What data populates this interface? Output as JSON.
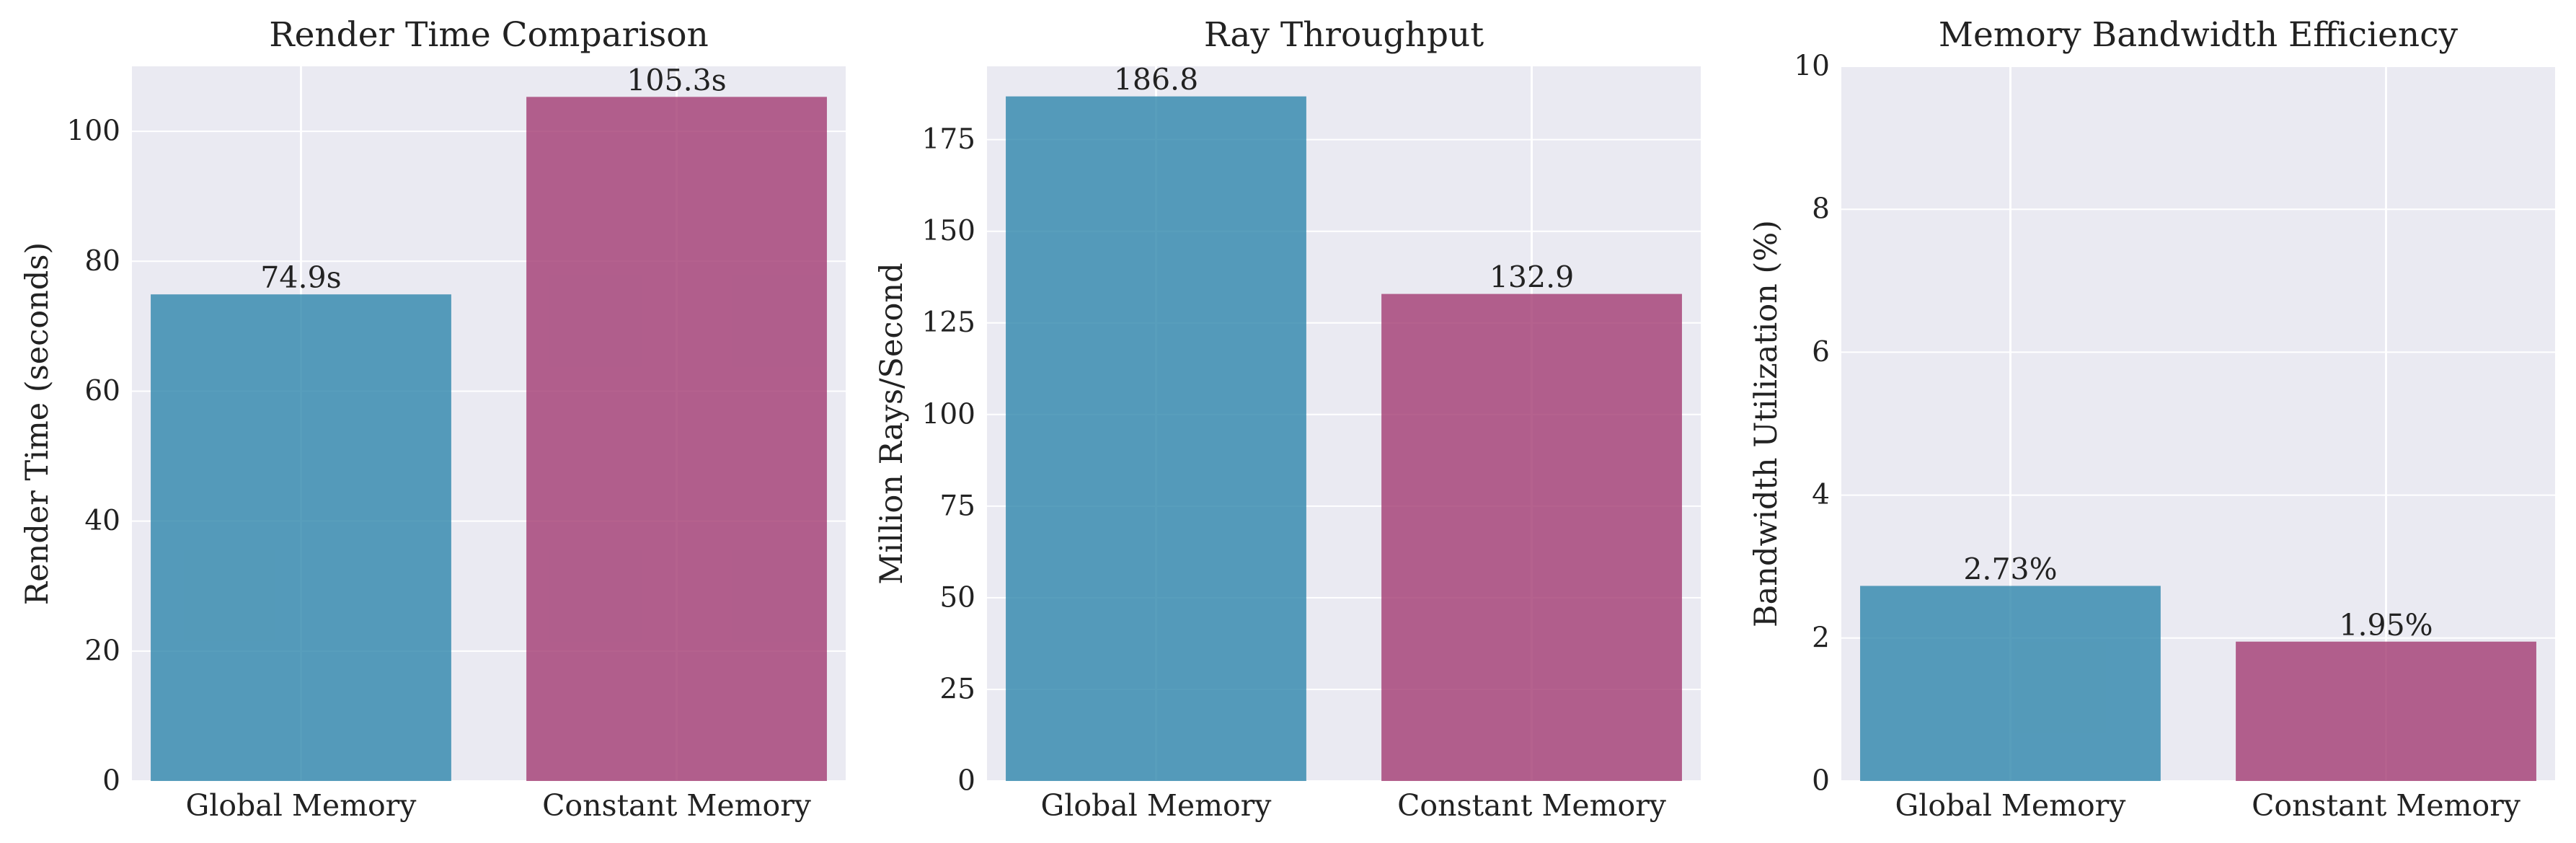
{
  "figure": {
    "background": "#ffffff",
    "panel_background": "#eaeaf2",
    "grid_color": "#ffffff"
  },
  "chart_data": [
    {
      "type": "bar",
      "title": "Render Time Comparison",
      "xlabel": "",
      "ylabel": "Render Time (seconds)",
      "categories": [
        "Global Memory",
        "Constant Memory"
      ],
      "values": [
        74.9,
        105.3
      ],
      "value_labels": [
        "74.9s",
        "105.3s"
      ],
      "colors": [
        "#2e86ab",
        "#a23b72"
      ],
      "ylim": [
        0,
        110
      ],
      "yticks": [
        0,
        20,
        40,
        60,
        80,
        100
      ],
      "ytick_labels": [
        "0",
        "20",
        "40",
        "60",
        "80",
        "100"
      ],
      "grid": true
    },
    {
      "type": "bar",
      "title": "Ray Throughput",
      "xlabel": "",
      "ylabel": "Million Rays/Second",
      "categories": [
        "Global Memory",
        "Constant Memory"
      ],
      "values": [
        186.8,
        132.9
      ],
      "value_labels": [
        "186.8",
        "132.9"
      ],
      "colors": [
        "#2e86ab",
        "#a23b72"
      ],
      "ylim": [
        0,
        195
      ],
      "yticks": [
        0,
        25,
        50,
        75,
        100,
        125,
        150,
        175
      ],
      "ytick_labels": [
        "0",
        "25",
        "50",
        "75",
        "100",
        "125",
        "150",
        "175"
      ],
      "grid": true
    },
    {
      "type": "bar",
      "title": "Memory Bandwidth Efficiency",
      "xlabel": "",
      "ylabel": "Bandwidth Utilization (%)",
      "categories": [
        "Global Memory",
        "Constant Memory"
      ],
      "values": [
        2.73,
        1.95
      ],
      "value_labels": [
        "2.73%",
        "1.95%"
      ],
      "colors": [
        "#2e86ab",
        "#a23b72"
      ],
      "ylim": [
        0,
        10
      ],
      "yticks": [
        0,
        2,
        4,
        6,
        8,
        10
      ],
      "ytick_labels": [
        "0",
        "2",
        "4",
        "6",
        "8",
        "10"
      ],
      "grid": true
    }
  ]
}
